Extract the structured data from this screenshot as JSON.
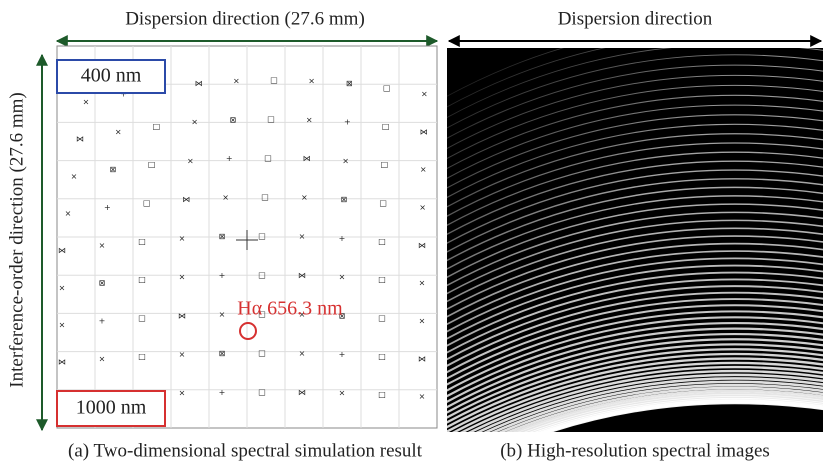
{
  "panel_a": {
    "title": "Dispersion direction (27.6 mm)",
    "y_label": "Interference-order direction (27.6 mm)",
    "label_top": "400 nm",
    "label_bottom": "1000 nm",
    "annotation": "Hα 656.3 nm",
    "caption": "(a) Two-dimensional spectral simulation result"
  },
  "panel_b": {
    "title": "Dispersion direction",
    "caption": "(b) High-resolution spectral images"
  }
}
